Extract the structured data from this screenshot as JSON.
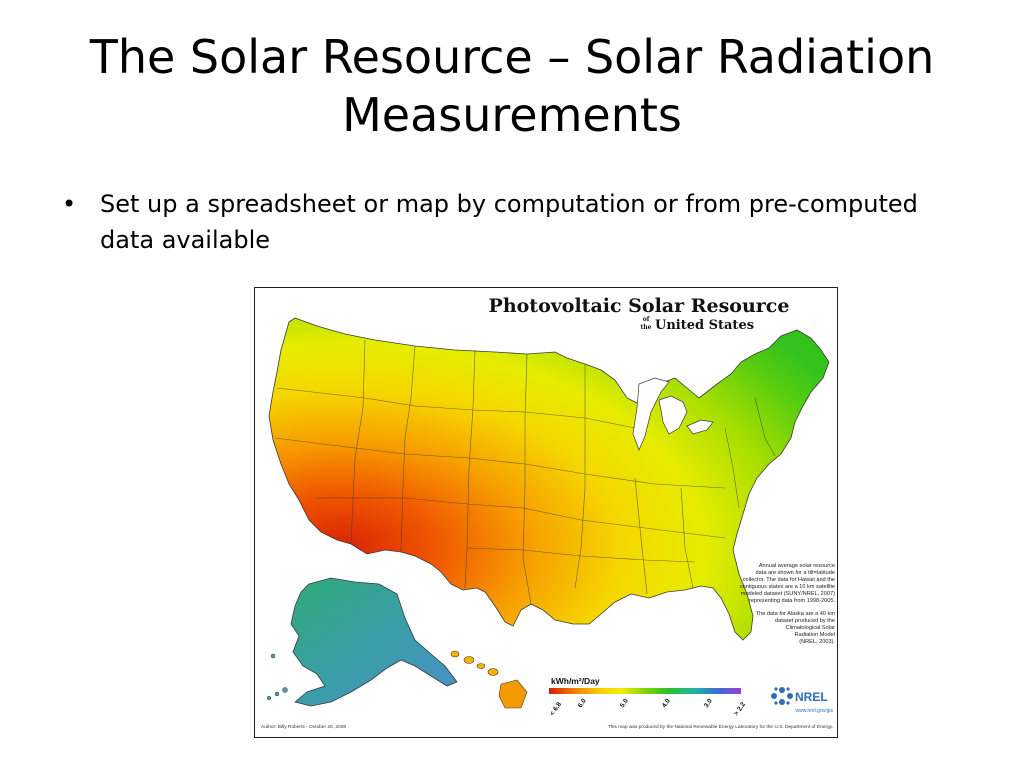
{
  "slide": {
    "title": "The Solar Resource – Solar Radiation Measurements",
    "bullets": [
      "Set up a spreadsheet or map by computation or from pre-computed data available"
    ]
  },
  "map": {
    "title": "Photovoltaic Solar Resource",
    "subtitle_of": "of",
    "subtitle_the": "the",
    "subtitle_rest": "United States",
    "description_1": [
      "Annual average solar resource",
      "data are shown for a tilt=latitude",
      "collector. The data for Hawaii and the",
      "contiguous states are a 10 km satellite",
      "modeled dataset (SUNY/NREL, 2007)",
      "representing data from 1998-2005."
    ],
    "description_2": [
      "The data for Alaska are a 40 km",
      "dataset produced by the",
      "Climatological Solar",
      "Radiation Model",
      "(NREL, 2003)."
    ],
    "legend_title": "kWh/m²/Day",
    "legend_ticks": [
      "< 6.8",
      "6.0",
      "5.0",
      "4.0",
      "3.0",
      "> 2.2"
    ],
    "legend_colors": [
      "#d81e05",
      "#f07a00",
      "#f7c800",
      "#f2ef00",
      "#7fd400",
      "#28c22a",
      "#1eb5a0",
      "#3a6fd0",
      "#9b3fd6"
    ],
    "logo_text": "NREL",
    "website": "www.nrel.gov/gis",
    "author": "Author: Billy Roberts - October 20, 2008",
    "credit": "This map was produced by the National Renewable Energy Laboratory for the U.S. Department of Energy."
  }
}
